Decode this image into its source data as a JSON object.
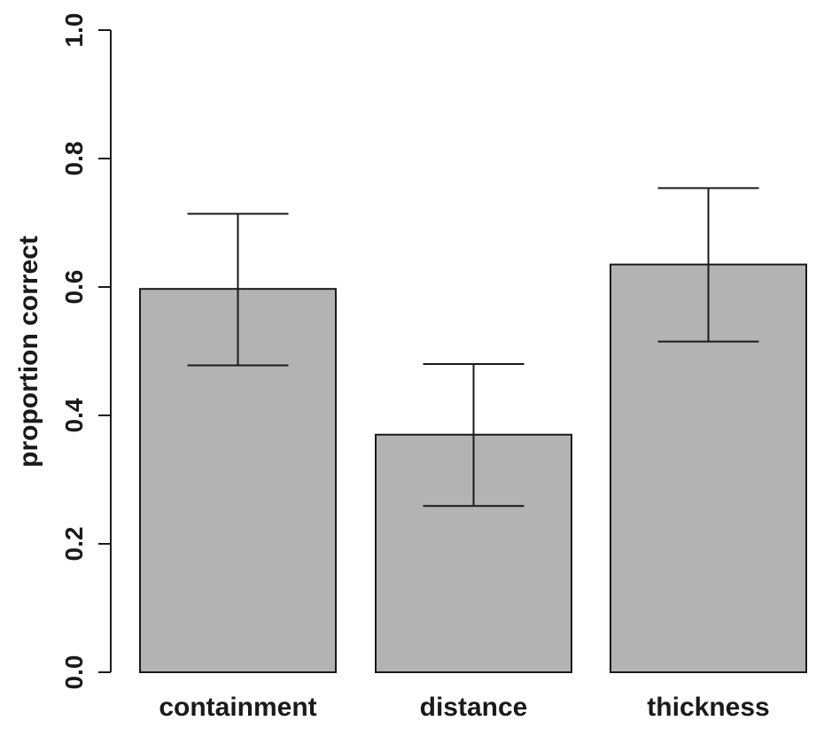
{
  "chart_data": {
    "type": "bar",
    "title": "",
    "xlabel": "",
    "ylabel": "proportion correct",
    "ylim": [
      0,
      1
    ],
    "yticks": [
      "0.0",
      "0.2",
      "0.4",
      "0.6",
      "0.8",
      "1.0"
    ],
    "categories": [
      "containment",
      "distance",
      "thickness"
    ],
    "values": [
      0.597,
      0.37,
      0.635
    ],
    "error_low": [
      0.478,
      0.259,
      0.515
    ],
    "error_high": [
      0.714,
      0.48,
      0.754
    ],
    "grid": false,
    "legend": "none",
    "colors": {
      "bar_fill": "#b3b3b3",
      "stroke": "#1a1a1a"
    }
  }
}
